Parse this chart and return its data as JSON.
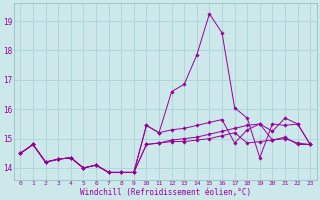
{
  "xlabel": "Windchill (Refroidissement éolien,°C)",
  "background_color": "#cce8ea",
  "line_color": "#990099",
  "grid_color": "#aad4d8",
  "xlim": [
    -0.5,
    23.5
  ],
  "ylim": [
    13.6,
    19.6
  ],
  "yticks": [
    14,
    15,
    16,
    17,
    18,
    19
  ],
  "xticks": [
    0,
    1,
    2,
    3,
    4,
    5,
    6,
    7,
    8,
    9,
    10,
    11,
    12,
    13,
    14,
    15,
    16,
    17,
    18,
    19,
    20,
    21,
    22,
    23
  ],
  "series": [
    [
      14.5,
      14.8,
      14.2,
      14.3,
      14.35,
      14.0,
      14.1,
      13.85,
      13.85,
      13.85,
      14.8,
      14.85,
      14.9,
      14.9,
      14.95,
      15.0,
      15.1,
      15.2,
      14.85,
      14.9,
      14.95,
      15.0,
      14.85,
      14.8
    ],
    [
      14.5,
      14.8,
      14.2,
      14.3,
      14.35,
      14.0,
      14.1,
      13.85,
      13.85,
      13.85,
      15.45,
      15.2,
      16.6,
      16.85,
      17.85,
      19.25,
      18.6,
      16.05,
      15.7,
      14.35,
      15.5,
      15.45,
      15.5,
      14.8
    ],
    [
      14.5,
      14.8,
      14.2,
      14.3,
      14.35,
      14.0,
      14.1,
      13.85,
      13.85,
      13.85,
      15.45,
      15.2,
      15.3,
      15.35,
      15.45,
      15.55,
      15.65,
      14.85,
      15.3,
      15.5,
      15.25,
      15.7,
      15.5,
      14.8
    ],
    [
      14.5,
      14.8,
      14.2,
      14.3,
      14.35,
      14.0,
      14.1,
      13.85,
      13.85,
      13.85,
      14.8,
      14.85,
      14.95,
      15.0,
      15.05,
      15.15,
      15.25,
      15.35,
      15.45,
      15.5,
      14.95,
      15.05,
      14.8,
      14.8
    ]
  ]
}
